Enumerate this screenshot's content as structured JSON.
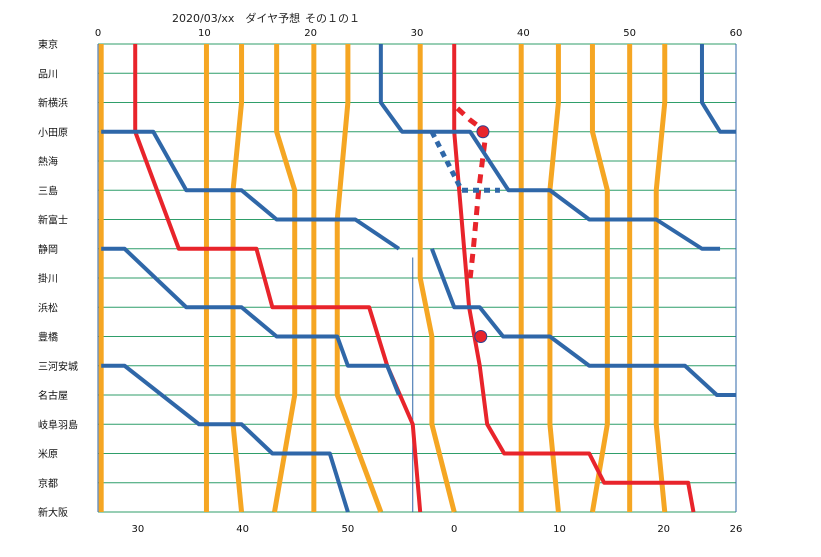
{
  "chart_data": {
    "type": "line",
    "title": "2020/03/xx　ダイヤ予想",
    "subtitle": "その１の１",
    "stations": [
      "東京",
      "品川",
      "新横浜",
      "小田原",
      "熱海",
      "三島",
      "新富士",
      "静岡",
      "掛川",
      "浜松",
      "豊橋",
      "三河安城",
      "名古屋",
      "岐阜羽島",
      "米原",
      "京都",
      "新大阪"
    ],
    "top_ticks": [
      {
        "label": "0",
        "x": 0
      },
      {
        "label": "10",
        "x": 10
      },
      {
        "label": "20",
        "x": 20
      },
      {
        "label": "30",
        "x": 30
      },
      {
        "label": "40",
        "x": 40
      },
      {
        "label": "50",
        "x": 50
      },
      {
        "label": "60",
        "x": 60
      }
    ],
    "bottom_ticks": [
      {
        "label": "30",
        "x": 3.75
      },
      {
        "label": "40",
        "x": 13.6
      },
      {
        "label": "50",
        "x": 23.5
      },
      {
        "label": "0",
        "x": 33.5
      },
      {
        "label": "10",
        "x": 43.4
      },
      {
        "label": "20",
        "x": 53.2
      },
      {
        "label": "26",
        "x": 60
      }
    ],
    "xlim": [
      0,
      60
    ],
    "colors": {
      "orange": "#f5a623",
      "blue": "#2f67a8",
      "red": "#e8242b",
      "grid": "#2f9e6a",
      "border": "#2f67a8"
    },
    "series": [
      {
        "color": "orange",
        "width": 5,
        "points": [
          [
            0.3,
            0
          ],
          [
            0.3,
            16
          ]
        ]
      },
      {
        "color": "orange",
        "width": 5,
        "points": [
          [
            10.2,
            0
          ],
          [
            10.2,
            16
          ]
        ]
      },
      {
        "color": "orange",
        "width": 5,
        "points": [
          [
            13.5,
            0
          ],
          [
            13.5,
            2
          ],
          [
            12.7,
            5
          ],
          [
            12.7,
            13
          ],
          [
            13.5,
            16
          ]
        ]
      },
      {
        "color": "orange",
        "width": 5,
        "points": [
          [
            16.8,
            0
          ],
          [
            16.8,
            3
          ],
          [
            18.5,
            5
          ],
          [
            18.5,
            12
          ],
          [
            16.6,
            16
          ]
        ]
      },
      {
        "color": "orange",
        "width": 5,
        "points": [
          [
            20.3,
            0
          ],
          [
            20.3,
            16
          ]
        ]
      },
      {
        "color": "orange",
        "width": 5,
        "points": [
          [
            23.5,
            0
          ],
          [
            23.5,
            2
          ],
          [
            22.5,
            6
          ],
          [
            22.5,
            12
          ],
          [
            26.6,
            16
          ]
        ]
      },
      {
        "color": "orange",
        "width": 5,
        "points": [
          [
            30.3,
            0
          ],
          [
            30.3,
            8
          ],
          [
            31.4,
            10
          ],
          [
            31.4,
            13
          ],
          [
            33.5,
            16
          ]
        ]
      },
      {
        "color": "orange",
        "width": 5,
        "points": [
          [
            39.8,
            0
          ],
          [
            39.8,
            16
          ]
        ]
      },
      {
        "color": "orange",
        "width": 5,
        "points": [
          [
            43.3,
            0
          ],
          [
            43.3,
            2
          ],
          [
            42.5,
            5
          ],
          [
            42.5,
            13
          ],
          [
            43.3,
            16
          ]
        ]
      },
      {
        "color": "orange",
        "width": 5,
        "points": [
          [
            46.5,
            0
          ],
          [
            46.5,
            3
          ],
          [
            47.9,
            5
          ],
          [
            47.9,
            13
          ],
          [
            46.5,
            16
          ]
        ]
      },
      {
        "color": "orange",
        "width": 5,
        "points": [
          [
            50,
            0
          ],
          [
            50,
            16
          ]
        ]
      },
      {
        "color": "orange",
        "width": 5,
        "points": [
          [
            53.3,
            0
          ],
          [
            53.3,
            2
          ],
          [
            52.5,
            5
          ],
          [
            52.5,
            13
          ],
          [
            53.3,
            16
          ]
        ]
      },
      {
        "color": "red",
        "width": 4,
        "points": [
          [
            3.5,
            0
          ],
          [
            3.5,
            3
          ],
          [
            7.6,
            7
          ],
          [
            14.9,
            7
          ],
          [
            16.4,
            9
          ],
          [
            25.5,
            9
          ],
          [
            27.2,
            11
          ],
          [
            29.6,
            13
          ],
          [
            30.3,
            16
          ]
        ]
      },
      {
        "color": "red",
        "width": 4,
        "points": [
          [
            33.5,
            0
          ],
          [
            33.5,
            3
          ],
          [
            34.9,
            9
          ],
          [
            35.9,
            11
          ],
          [
            36.6,
            13
          ],
          [
            38.2,
            14
          ],
          [
            46.2,
            14
          ],
          [
            47.6,
            15
          ],
          [
            55.5,
            15
          ],
          [
            56,
            16
          ]
        ]
      },
      {
        "color": "red",
        "width": 5,
        "dash": "9 7",
        "points": [
          [
            33.8,
            2.2
          ],
          [
            35,
            2.6
          ],
          [
            36.5,
            3
          ],
          [
            35.8,
            5
          ],
          [
            35.3,
            7
          ],
          [
            35,
            8
          ]
        ]
      },
      {
        "color": "blue",
        "width": 4,
        "points": [
          [
            0.3,
            3
          ],
          [
            5.2,
            3
          ],
          [
            8.3,
            5
          ],
          [
            13.5,
            5
          ],
          [
            16.8,
            6
          ],
          [
            24.2,
            6
          ],
          [
            28.3,
            7
          ]
        ]
      },
      {
        "color": "blue",
        "width": 4,
        "points": [
          [
            0.3,
            7
          ],
          [
            2.5,
            7
          ],
          [
            8.3,
            9
          ],
          [
            13.5,
            9
          ],
          [
            16.8,
            10
          ],
          [
            22.5,
            10
          ],
          [
            23.5,
            11
          ],
          [
            27.2,
            11
          ],
          [
            28.3,
            12
          ]
        ]
      },
      {
        "color": "blue",
        "width": 4,
        "points": [
          [
            0.3,
            11
          ],
          [
            2.5,
            11
          ],
          [
            9.5,
            13
          ],
          [
            13.5,
            13
          ],
          [
            16.4,
            14
          ],
          [
            21.8,
            14
          ],
          [
            23.5,
            16
          ]
        ]
      },
      {
        "color": "blue",
        "width": 4,
        "points": [
          [
            26.6,
            0
          ],
          [
            26.6,
            2
          ],
          [
            28.6,
            3
          ],
          [
            35,
            3
          ],
          [
            38.6,
            5
          ],
          [
            42.5,
            5
          ],
          [
            46.2,
            6
          ],
          [
            52.5,
            6
          ],
          [
            56.8,
            7
          ],
          [
            58.5,
            7
          ]
        ]
      },
      {
        "color": "blue",
        "width": 4,
        "points": [
          [
            31.4,
            7
          ],
          [
            33.5,
            9
          ],
          [
            35.9,
            9
          ],
          [
            38.1,
            10
          ],
          [
            42.5,
            10
          ],
          [
            46.2,
            11
          ],
          [
            55.2,
            11
          ],
          [
            58.2,
            12
          ],
          [
            60,
            12
          ]
        ]
      },
      {
        "color": "blue",
        "width": 4,
        "points": [
          [
            56.8,
            0
          ],
          [
            56.8,
            2
          ],
          [
            58.5,
            3
          ],
          [
            60,
            3
          ]
        ]
      },
      {
        "color": "blue",
        "width": 5,
        "dash": "6 5",
        "points": [
          [
            31.4,
            3
          ],
          [
            34.2,
            5
          ],
          [
            37.8,
            5
          ]
        ]
      }
    ],
    "markers": [
      {
        "x": 36.2,
        "y": 3,
        "color": "red"
      },
      {
        "x": 36,
        "y": 10,
        "color": "red"
      }
    ],
    "thin_lines": [
      {
        "color": "blue",
        "points": [
          [
            29.6,
            7.3
          ],
          [
            29.6,
            16
          ]
        ]
      }
    ]
  }
}
